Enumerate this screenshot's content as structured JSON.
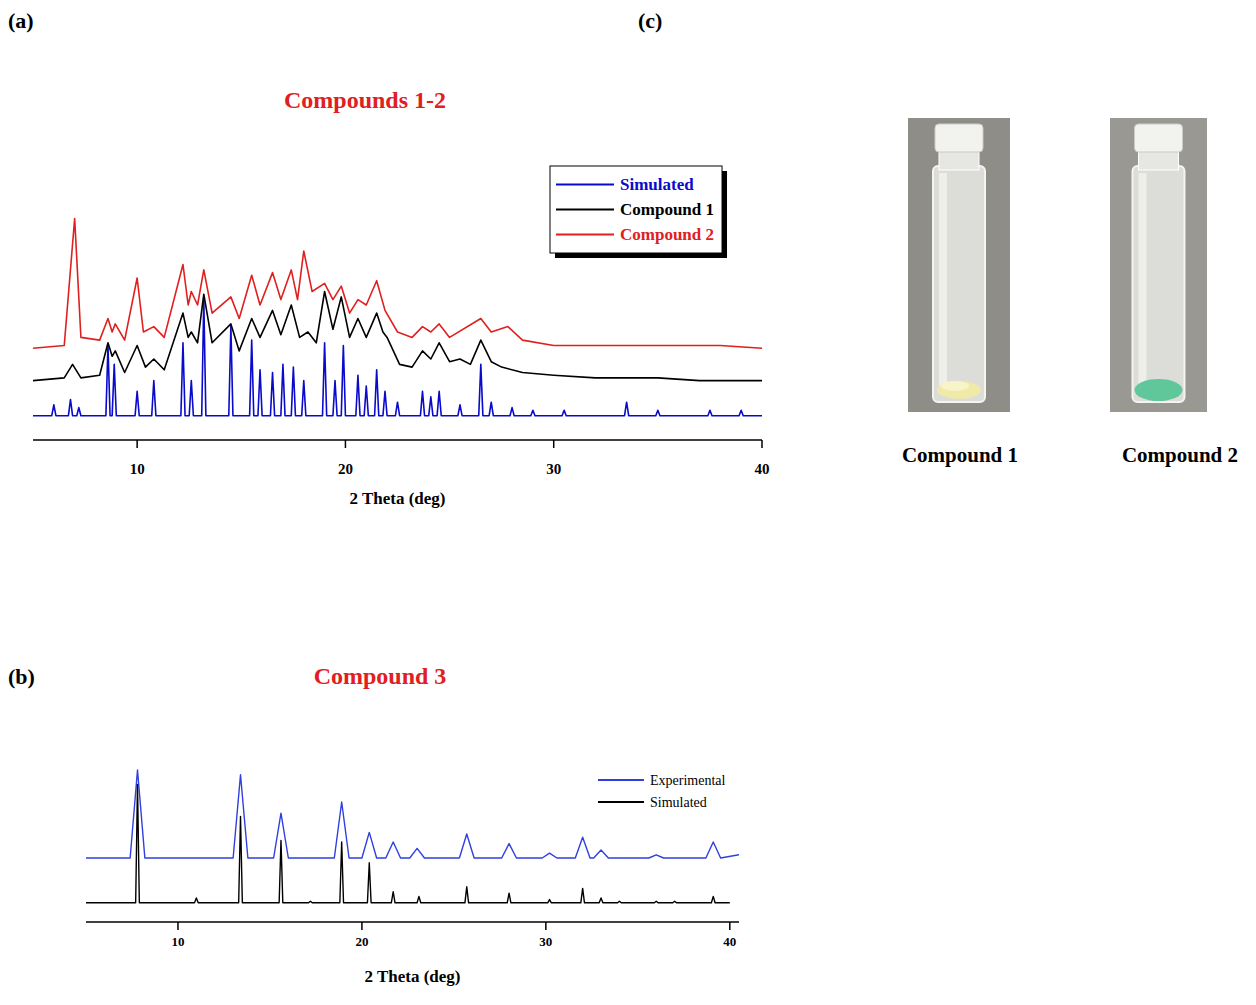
{
  "chart_data": [
    {
      "type": "line",
      "label": "(a)",
      "title": "Compounds 1-2",
      "x_label": "2 Theta (deg)",
      "xlim": [
        5,
        40
      ],
      "xticks": [
        10,
        20,
        30,
        40
      ],
      "ylim": [
        0,
        100
      ],
      "tick_labels": "x",
      "grid": false,
      "legend": "upper right",
      "series": [
        {
          "name": "Simulated",
          "color": "#0a0acc",
          "x": [
            5,
            5.9,
            6,
            6.1,
            6.7,
            6.8,
            6.9,
            7.1,
            7.2,
            7.3,
            8.5,
            8.6,
            8.7,
            8.8,
            8.9,
            9,
            9.9,
            10,
            10.1,
            10.7,
            10.8,
            10.9,
            12.1,
            12.2,
            12.3,
            12.5,
            12.6,
            12.7,
            13.1,
            13.2,
            13.3,
            14.4,
            14.5,
            14.6,
            15.4,
            15.5,
            15.6,
            15.8,
            15.9,
            16,
            16.4,
            16.5,
            16.6,
            16.9,
            17,
            17.1,
            17.4,
            17.5,
            17.6,
            17.9,
            18,
            18.1,
            18.9,
            19,
            19.1,
            19.4,
            19.5,
            19.6,
            19.8,
            19.9,
            20,
            20.5,
            20.6,
            20.7,
            20.9,
            21,
            21.1,
            21.4,
            21.5,
            21.6,
            21.8,
            21.9,
            22,
            22.4,
            22.5,
            22.6,
            23.6,
            23.7,
            23.8,
            24,
            24.1,
            24.2,
            24.4,
            24.5,
            24.6,
            25.4,
            25.5,
            25.6,
            26.4,
            26.5,
            26.6,
            26.9,
            27,
            27.1,
            27.9,
            28,
            28.1,
            28.9,
            29,
            29.1,
            30.4,
            30.5,
            30.6,
            33.4,
            33.5,
            33.6,
            34.9,
            35,
            35.1,
            37.4,
            37.5,
            37.6,
            38.9,
            39,
            39.1,
            40
          ],
          "values": [
            9,
            9,
            13,
            9,
            9,
            15,
            9,
            9,
            12,
            9,
            9,
            35,
            9,
            9,
            28,
            9,
            9,
            18,
            9,
            9,
            22,
            9,
            9,
            36,
            9,
            9,
            22,
            9,
            9,
            52,
            9,
            9,
            42,
            9,
            9,
            37,
            9,
            9,
            26,
            9,
            9,
            25,
            9,
            9,
            28,
            9,
            9,
            27,
            9,
            9,
            22,
            9,
            9,
            36,
            9,
            9,
            22,
            9,
            9,
            35,
            9,
            9,
            24,
            9,
            9,
            20,
            9,
            9,
            26,
            9,
            9,
            18,
            9,
            9,
            14,
            9,
            9,
            18,
            9,
            9,
            16,
            9,
            9,
            18,
            9,
            9,
            13,
            9,
            9,
            28,
            9,
            9,
            14,
            9,
            9,
            12,
            9,
            9,
            11,
            9,
            9,
            11,
            9,
            9,
            14,
            9,
            9,
            11,
            9,
            9,
            11,
            9,
            9,
            11,
            9,
            9
          ]
        },
        {
          "name": "Compound 1",
          "color": "#000000",
          "x": [
            5,
            6.5,
            6.9,
            7.3,
            8.2,
            8.6,
            8.8,
            8.95,
            9.4,
            10,
            10.4,
            10.8,
            11.3,
            12.2,
            12.45,
            12.6,
            12.9,
            13.2,
            13.6,
            14.5,
            14.9,
            15.5,
            15.9,
            16.5,
            16.9,
            17.4,
            17.8,
            18.2,
            18.6,
            19,
            19.4,
            19.8,
            20.2,
            20.6,
            21,
            21.5,
            21.8,
            22,
            22.6,
            23.2,
            23.7,
            24.1,
            24.5,
            25,
            25.5,
            26,
            26.5,
            27,
            27.5,
            28.5,
            30,
            32,
            35,
            37,
            40
          ],
          "values": [
            22,
            23,
            28,
            23,
            24,
            36,
            31,
            33,
            25,
            35,
            27,
            30,
            26,
            47,
            38,
            40,
            36,
            54,
            36,
            43,
            33,
            45,
            38,
            48,
            39,
            50,
            38,
            40,
            36,
            55,
            41,
            53,
            38,
            45,
            38,
            47,
            40,
            38,
            28,
            27,
            33,
            30,
            36,
            29,
            30,
            28,
            37,
            29,
            27,
            25,
            24,
            23,
            23,
            22,
            22
          ]
        },
        {
          "name": "Compound 2",
          "color": "#e0201f",
          "x": [
            5,
            6.5,
            7,
            7.3,
            8.2,
            8.6,
            8.8,
            8.95,
            9.4,
            10,
            10.3,
            10.8,
            11.3,
            12.2,
            12.45,
            12.6,
            12.9,
            13.2,
            13.6,
            14.5,
            14.9,
            15.5,
            15.9,
            16.5,
            16.9,
            17.4,
            17.7,
            18,
            18.4,
            19,
            19.4,
            19.8,
            20.2,
            20.6,
            21,
            21.5,
            21.9,
            22.5,
            23.2,
            23.7,
            24.1,
            24.5,
            25,
            26.5,
            27,
            27.8,
            28.5,
            30,
            32,
            35,
            38,
            40
          ],
          "values": [
            34,
            35,
            82,
            38,
            37,
            45,
            40,
            43,
            37,
            60,
            40,
            42,
            38,
            65,
            50,
            55,
            50,
            63,
            47,
            53,
            45,
            61,
            50,
            62,
            52,
            63,
            52,
            70,
            55,
            58,
            52,
            57,
            47,
            52,
            50,
            59,
            48,
            40,
            38,
            42,
            40,
            43,
            38,
            45,
            40,
            42,
            37,
            35,
            35,
            35,
            35,
            34
          ]
        }
      ]
    },
    {
      "type": "line",
      "label": "(b)",
      "title": "Compound 3",
      "x_label": "2 Theta (deg)",
      "xlim": [
        5,
        40.5
      ],
      "xticks": [
        10,
        20,
        30,
        40
      ],
      "ylim": [
        0,
        100
      ],
      "tick_labels": "x",
      "grid": false,
      "legend": "upper right",
      "series": [
        {
          "name": "Experimental",
          "color": "#2f3fe0",
          "x": [
            5,
            7.4,
            7.8,
            8.2,
            13,
            13.4,
            13.8,
            15.2,
            15.6,
            16,
            18.5,
            18.9,
            19.3,
            20,
            20.4,
            20.8,
            21.3,
            21.7,
            22.1,
            22.6,
            23,
            23.4,
            25.3,
            25.7,
            26.1,
            27.6,
            28,
            28.4,
            29.8,
            30.2,
            30.6,
            31.6,
            32,
            32.4,
            32.6,
            33,
            33.4,
            35.6,
            36,
            36.4,
            38.7,
            39.1,
            39.5,
            40.5
          ],
          "values": [
            40,
            40,
            95,
            40,
            40,
            92,
            40,
            40,
            68,
            40,
            40,
            75,
            40,
            40,
            56,
            40,
            40,
            50,
            40,
            40,
            46,
            40,
            40,
            55,
            40,
            40,
            49,
            40,
            40,
            43,
            40,
            40,
            53,
            40,
            40,
            45,
            40,
            40,
            42,
            40,
            40,
            50,
            40,
            42
          ]
        },
        {
          "name": "Simulated",
          "color": "#000000",
          "x": [
            5,
            7.7,
            7.8,
            7.9,
            10.9,
            11,
            11.1,
            13.3,
            13.4,
            13.5,
            15.5,
            15.6,
            15.7,
            17.1,
            17.2,
            17.3,
            18.8,
            18.9,
            19,
            20.3,
            20.4,
            20.5,
            21.6,
            21.7,
            21.8,
            23,
            23.1,
            23.2,
            25.6,
            25.7,
            25.8,
            27.9,
            28,
            28.1,
            30.1,
            30.2,
            30.3,
            31.9,
            32,
            32.1,
            32.9,
            33,
            33.1,
            33.9,
            34,
            34.1,
            35.9,
            36,
            36.1,
            36.9,
            37,
            37.1,
            39,
            39.1,
            39.2,
            40
          ],
          "values": [
            12,
            12,
            86,
            12,
            12,
            15,
            12,
            12,
            66,
            12,
            12,
            51,
            12,
            12,
            13,
            12,
            12,
            50,
            12,
            12,
            37,
            12,
            12,
            19,
            12,
            12,
            16,
            12,
            12,
            22,
            12,
            12,
            18,
            12,
            12,
            14,
            12,
            12,
            21,
            12,
            12,
            15,
            12,
            12,
            13,
            12,
            12,
            13,
            12,
            12,
            13,
            12,
            12,
            16,
            12,
            12
          ]
        }
      ]
    }
  ],
  "photos": {
    "label": "(c)",
    "items": [
      {
        "caption": "Compound 1"
      },
      {
        "caption": "Compound 2"
      }
    ]
  }
}
